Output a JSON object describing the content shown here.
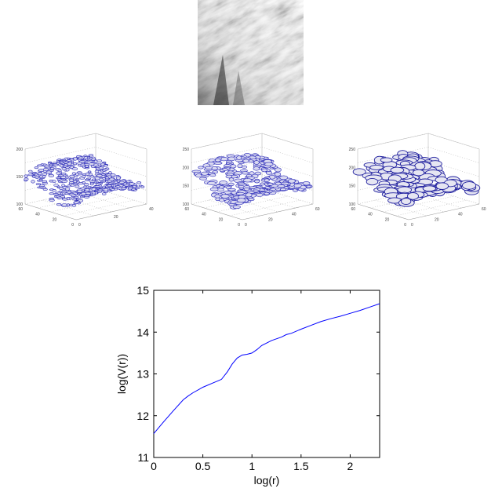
{
  "panels": {
    "texture": {
      "icon": "grayscale-texture-image"
    },
    "surface_plots": [
      {
        "x_ticks": [
          "0",
          "20",
          "40"
        ],
        "y_ticks": [
          "0",
          "20",
          "40",
          "60"
        ],
        "z_ticks": [
          "100",
          "150",
          "200"
        ],
        "color": "#2a2ab8",
        "density": "fine"
      },
      {
        "x_ticks": [
          "0",
          "20",
          "40",
          "60"
        ],
        "y_ticks": [
          "0",
          "20",
          "40",
          "60"
        ],
        "z_ticks": [
          "100",
          "150",
          "200",
          "250"
        ],
        "color": "#2a2ab8",
        "density": "medium"
      },
      {
        "x_ticks": [
          "0",
          "20",
          "40",
          "60"
        ],
        "y_ticks": [
          "0",
          "20",
          "40",
          "60"
        ],
        "z_ticks": [
          "100",
          "150",
          "200",
          "250"
        ],
        "color": "#1f1f9e",
        "density": "coarse"
      }
    ]
  },
  "chart_data": {
    "type": "line",
    "title": "",
    "xlabel": "log(r)",
    "ylabel": "log(V(r))",
    "xlim": [
      0,
      2.3
    ],
    "ylim": [
      11,
      15
    ],
    "x_ticks": [
      0,
      0.5,
      1,
      1.5,
      2
    ],
    "x_tick_labels": [
      "0",
      "0.5",
      "1",
      "1.5",
      "2"
    ],
    "y_ticks": [
      11,
      12,
      13,
      14,
      15
    ],
    "y_tick_labels": [
      "11",
      "12",
      "13",
      "14",
      "15"
    ],
    "grid": false,
    "line_color": "#0000ff",
    "series": [
      {
        "x": [
          0,
          0.1,
          0.2,
          0.3,
          0.35,
          0.4,
          0.5,
          0.6,
          0.65,
          0.69,
          0.75,
          0.8,
          0.85,
          0.9,
          0.95,
          1.0,
          1.05,
          1.1,
          1.2,
          1.3,
          1.35,
          1.4,
          1.5,
          1.6,
          1.7,
          1.8,
          1.9,
          2.0,
          2.1,
          2.2,
          2.3
        ],
        "y": [
          11.57,
          11.85,
          12.12,
          12.38,
          12.47,
          12.55,
          12.68,
          12.78,
          12.83,
          12.87,
          13.05,
          13.24,
          13.38,
          13.45,
          13.47,
          13.5,
          13.58,
          13.68,
          13.8,
          13.88,
          13.94,
          13.97,
          14.07,
          14.16,
          14.25,
          14.32,
          14.38,
          14.45,
          14.52,
          14.6,
          14.68
        ]
      }
    ]
  }
}
